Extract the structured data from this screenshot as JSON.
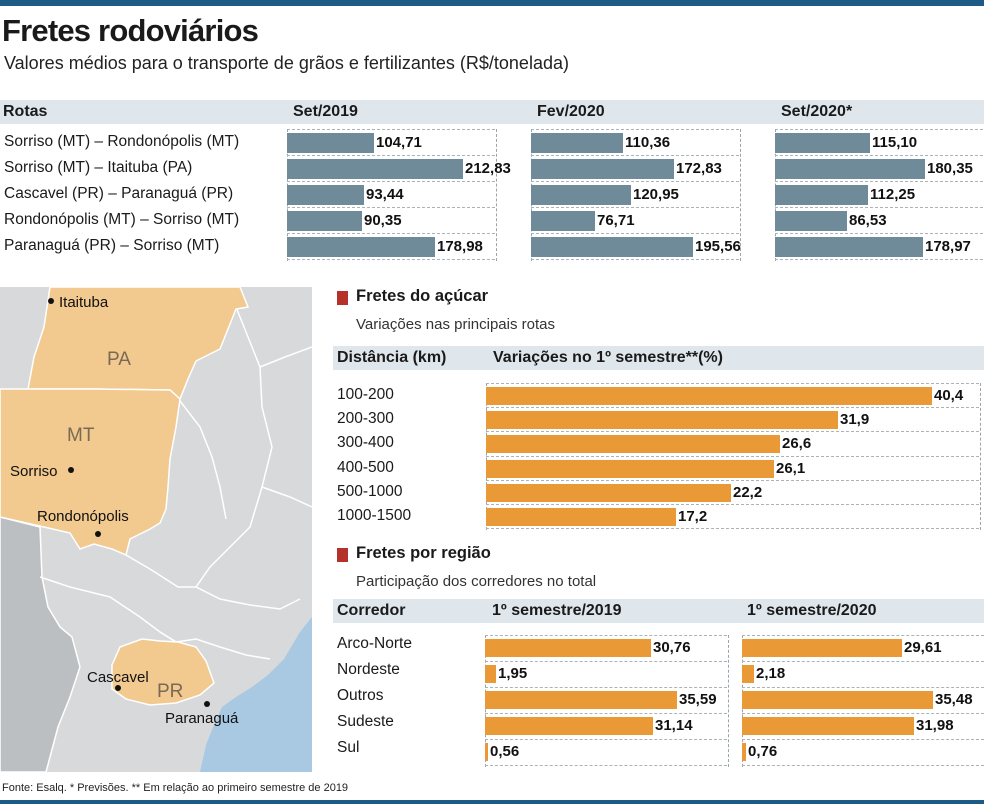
{
  "header": {
    "title": "Fretes rodoviários",
    "subtitle": "Valores médios para o transporte de grãos e fertilizantes (R$/tonelada)"
  },
  "chart_data": [
    {
      "type": "bar",
      "orientation": "horizontal",
      "row_header": "Rotas",
      "categories": [
        "Sorriso (MT) – Rondonópolis (MT)",
        "Sorriso (MT) – Itaituba (PA)",
        "Cascavel (PR) – Paranaguá (PR)",
        "Rondonópolis (MT) – Sorriso (MT)",
        "Paranaguá (PR) – Sorriso (MT)"
      ],
      "series": [
        {
          "name": "Set/2019",
          "values": [
            104.71,
            212.83,
            93.44,
            90.35,
            178.98
          ],
          "labels": [
            "104,71",
            "212,83",
            "93,44",
            "90,35",
            "178,98"
          ]
        },
        {
          "name": "Fev/2020",
          "values": [
            110.36,
            172.83,
            120.95,
            76.71,
            195.56
          ],
          "labels": [
            "110,36",
            "172,83",
            "120,95",
            "76,71",
            "195,56"
          ]
        },
        {
          "name": "Set/2020*",
          "values": [
            115.1,
            180.35,
            112.25,
            86.53,
            178.97
          ],
          "labels": [
            "115,10",
            "180,35",
            "112,25",
            "86,53",
            "178,97"
          ]
        }
      ],
      "color": "#6f8a98",
      "xlim": [
        0,
        240
      ]
    },
    {
      "type": "bar",
      "orientation": "horizontal",
      "title": "Fretes do açúcar",
      "subtitle": "Variações nas principais rotas",
      "row_header": "Distância (km)",
      "series_header": "Variações no 1º semestre**(%)",
      "categories": [
        "100-200",
        "200-300",
        "300-400",
        "400-500",
        "500-1000",
        "1000-1500"
      ],
      "values": [
        40.4,
        31.9,
        26.6,
        26.1,
        22.2,
        17.2
      ],
      "labels": [
        "40,4",
        "31,9",
        "26,6",
        "26,1",
        "22,2",
        "17,2"
      ],
      "color": "#e99a37",
      "xlim": [
        0,
        40.4
      ]
    },
    {
      "type": "bar",
      "orientation": "horizontal",
      "title": "Fretes por região",
      "subtitle": "Participação dos corredores no total",
      "row_header": "Corredor",
      "categories": [
        "Arco-Norte",
        "Nordeste",
        "Outros",
        "Sudeste",
        "Sul"
      ],
      "series": [
        {
          "name": "1º semestre/2019",
          "values": [
            30.76,
            1.95,
            35.59,
            31.14,
            0.56
          ],
          "labels": [
            "30,76",
            "1,95",
            "35,59",
            "31,14",
            "0,56"
          ]
        },
        {
          "name": "1º semestre/2020",
          "values": [
            29.61,
            2.18,
            35.48,
            31.98,
            0.76
          ],
          "labels": [
            "29,61",
            "2,18",
            "35,48",
            "31,98",
            "0,76"
          ]
        }
      ],
      "color": "#e99a37",
      "xlim": [
        0,
        35.6
      ]
    }
  ],
  "map": {
    "states": [
      "PA",
      "MT",
      "PR"
    ],
    "cities": [
      "Itaituba",
      "Sorriso",
      "Rondonópolis",
      "Cascavel",
      "Paranaguá"
    ],
    "highlight_color": "#f2c98e"
  },
  "footer": "Fonte: Esalq. * Previsões. ** Em relação ao primeiro semestre de 2019"
}
